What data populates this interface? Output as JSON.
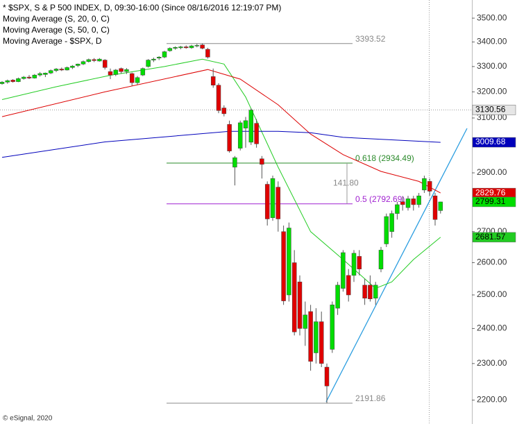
{
  "chart_data": {
    "type": "candlestick",
    "title": "* $SPX, S & P 500 INDEX, D, 09:30-16:00 (Since 08/16/2016 12:19:07 PM)",
    "log_scale": true,
    "ylim": [
      2137,
      3578
    ],
    "yticks": [
      {
        "value": 2200,
        "label": "2200.00"
      },
      {
        "value": 2300,
        "label": "2300.00"
      },
      {
        "value": 2400,
        "label": "2400.00"
      },
      {
        "value": 2500,
        "label": "2500.00"
      },
      {
        "value": 2600,
        "label": "2600.00"
      },
      {
        "value": 2700,
        "label": "2700.00"
      },
      {
        "value": 2900,
        "label": "2900.00"
      },
      {
        "value": 3100,
        "label": "3100.00"
      },
      {
        "value": 3200,
        "label": "3200.00"
      },
      {
        "value": 3300,
        "label": "3300.00"
      },
      {
        "value": 3400,
        "label": "3400.00"
      },
      {
        "value": 3500,
        "label": "3500.00"
      }
    ],
    "up_color": "#00dd00",
    "down_color": "#e00000",
    "ohlc": [
      [
        3232,
        3242,
        3228,
        3238
      ],
      [
        3238,
        3248,
        3232,
        3244
      ],
      [
        3246,
        3250,
        3236,
        3240
      ],
      [
        3240,
        3256,
        3238,
        3252
      ],
      [
        3252,
        3262,
        3248,
        3258
      ],
      [
        3258,
        3266,
        3250,
        3254
      ],
      [
        3254,
        3270,
        3252,
        3266
      ],
      [
        3266,
        3278,
        3260,
        3272
      ],
      [
        3268,
        3276,
        3258,
        3274
      ],
      [
        3274,
        3288,
        3270,
        3284
      ],
      [
        3284,
        3294,
        3278,
        3290
      ],
      [
        3290,
        3296,
        3282,
        3286
      ],
      [
        3286,
        3300,
        3284,
        3296
      ],
      [
        3296,
        3306,
        3290,
        3302
      ],
      [
        3304,
        3312,
        3298,
        3310
      ],
      [
        3310,
        3324,
        3306,
        3320
      ],
      [
        3320,
        3332,
        3316,
        3328
      ],
      [
        3328,
        3334,
        3318,
        3324
      ],
      [
        3322,
        3334,
        3320,
        3330
      ],
      [
        3326,
        3330,
        3288,
        3296
      ],
      [
        3280,
        3292,
        3250,
        3266
      ],
      [
        3268,
        3290,
        3262,
        3286
      ],
      [
        3292,
        3296,
        3272,
        3280
      ],
      [
        3280,
        3294,
        3270,
        3288
      ],
      [
        3272,
        3276,
        3224,
        3236
      ],
      [
        3236,
        3262,
        3228,
        3256
      ],
      [
        3266,
        3296,
        3262,
        3292
      ],
      [
        3300,
        3330,
        3296,
        3326
      ],
      [
        3326,
        3336,
        3318,
        3330
      ],
      [
        3334,
        3342,
        3326,
        3338
      ],
      [
        3338,
        3364,
        3334,
        3360
      ],
      [
        3364,
        3378,
        3360,
        3374
      ],
      [
        3374,
        3382,
        3368,
        3378
      ],
      [
        3376,
        3384,
        3370,
        3380
      ],
      [
        3380,
        3386,
        3372,
        3376
      ],
      [
        3376,
        3388,
        3372,
        3384
      ],
      [
        3384,
        3392,
        3378,
        3386
      ],
      [
        3388,
        3393.52,
        3370,
        3374
      ],
      [
        3370,
        3376,
        3332,
        3338
      ],
      [
        3260,
        3292,
        3216,
        3226
      ],
      [
        3226,
        3234,
        3118,
        3128
      ],
      [
        3138,
        3148,
        3106,
        3116
      ],
      [
        3076,
        3090,
        2972,
        2978
      ],
      [
        2920,
        2960,
        2856,
        2954
      ],
      [
        2988,
        3090,
        2980,
        3082
      ],
      [
        3062,
        3104,
        2990,
        3090
      ],
      [
        3010,
        3136,
        3000,
        3130
      ],
      [
        3080,
        3096,
        2990,
        3004
      ],
      [
        2950,
        2960,
        2880,
        2930
      ],
      [
        2860,
        2870,
        2720,
        2742
      ],
      [
        2746,
        2890,
        2736,
        2880
      ],
      [
        2850,
        2870,
        2700,
        2742
      ],
      [
        2700,
        2720,
        2470,
        2482
      ],
      [
        2500,
        2730,
        2480,
        2712
      ],
      [
        2600,
        2640,
        2380,
        2390
      ],
      [
        2540,
        2560,
        2380,
        2400
      ],
      [
        2400,
        2480,
        2350,
        2440
      ],
      [
        2450,
        2470,
        2280,
        2306
      ],
      [
        2330,
        2460,
        2300,
        2420
      ],
      [
        2420,
        2450,
        2290,
        2300
      ],
      [
        2290,
        2300,
        2191.86,
        2238
      ],
      [
        2340,
        2480,
        2330,
        2470
      ],
      [
        2460,
        2540,
        2440,
        2530
      ],
      [
        2520,
        2640,
        2510,
        2632
      ],
      [
        2560,
        2580,
        2480,
        2500
      ],
      [
        2560,
        2640,
        2540,
        2630
      ],
      [
        2620,
        2640,
        2560,
        2580
      ],
      [
        2530,
        2550,
        2470,
        2490
      ],
      [
        2530,
        2560,
        2480,
        2488
      ],
      [
        2490,
        2540,
        2470,
        2530
      ],
      [
        2580,
        2650,
        2570,
        2640
      ],
      [
        2660,
        2760,
        2650,
        2750
      ],
      [
        2700,
        2770,
        2680,
        2760
      ],
      [
        2760,
        2800,
        2740,
        2790
      ],
      [
        2800,
        2818,
        2770,
        2790
      ],
      [
        2780,
        2820,
        2770,
        2810
      ],
      [
        2810,
        2820,
        2770,
        2790
      ],
      [
        2790,
        2830,
        2780,
        2820
      ],
      [
        2840,
        2890,
        2830,
        2880
      ],
      [
        2870,
        2880,
        2820,
        2836
      ],
      [
        2820,
        2830,
        2720,
        2740
      ],
      [
        2770,
        2800,
        2760,
        2799.31
      ]
    ],
    "series": [
      {
        "name": "Moving Average (S, 20, 0, C)",
        "color": "#22cc22",
        "text_color": "#000000",
        "x": [
          0,
          10,
          20,
          30,
          37,
          41,
          45,
          51,
          57,
          63,
          69,
          72,
          76,
          81
        ],
        "values": [
          3170,
          3220,
          3265,
          3300,
          3330,
          3310,
          3180,
          2920,
          2700,
          2610,
          2520,
          2540,
          2610,
          2681.57
        ]
      },
      {
        "name": "Moving Average (S, 50, 0, C)",
        "color": "#dd0000",
        "text_color": "#ffffff",
        "x": [
          0,
          19,
          38,
          44,
          51,
          57,
          63,
          70,
          77,
          81
        ],
        "values": [
          3105,
          3200,
          3288,
          3250,
          3150,
          3040,
          2965,
          2905,
          2870,
          2829.76
        ]
      },
      {
        "name": "Moving Average - $SPX, D",
        "color": "#0000bb",
        "text_color": "#ffffff",
        "x": [
          0,
          19,
          42,
          51,
          57,
          63,
          81
        ],
        "values": [
          2955,
          3011,
          3050,
          3050,
          3045,
          3028,
          3009.68
        ]
      }
    ],
    "cursor_price": 3130.56,
    "levels": [
      3393.52,
      2191.86
    ],
    "fib": [
      {
        "label": "0.618 (2934.49)",
        "value": 2934.49,
        "color": "#2a8a2a"
      },
      {
        "label": "0.5 (2792.69)",
        "value": 2792.69,
        "color": "#a020d0"
      }
    ],
    "fib_range": {
      "value": 141.8,
      "label": "141.80"
    },
    "footer": "© eSignal, 2020"
  }
}
